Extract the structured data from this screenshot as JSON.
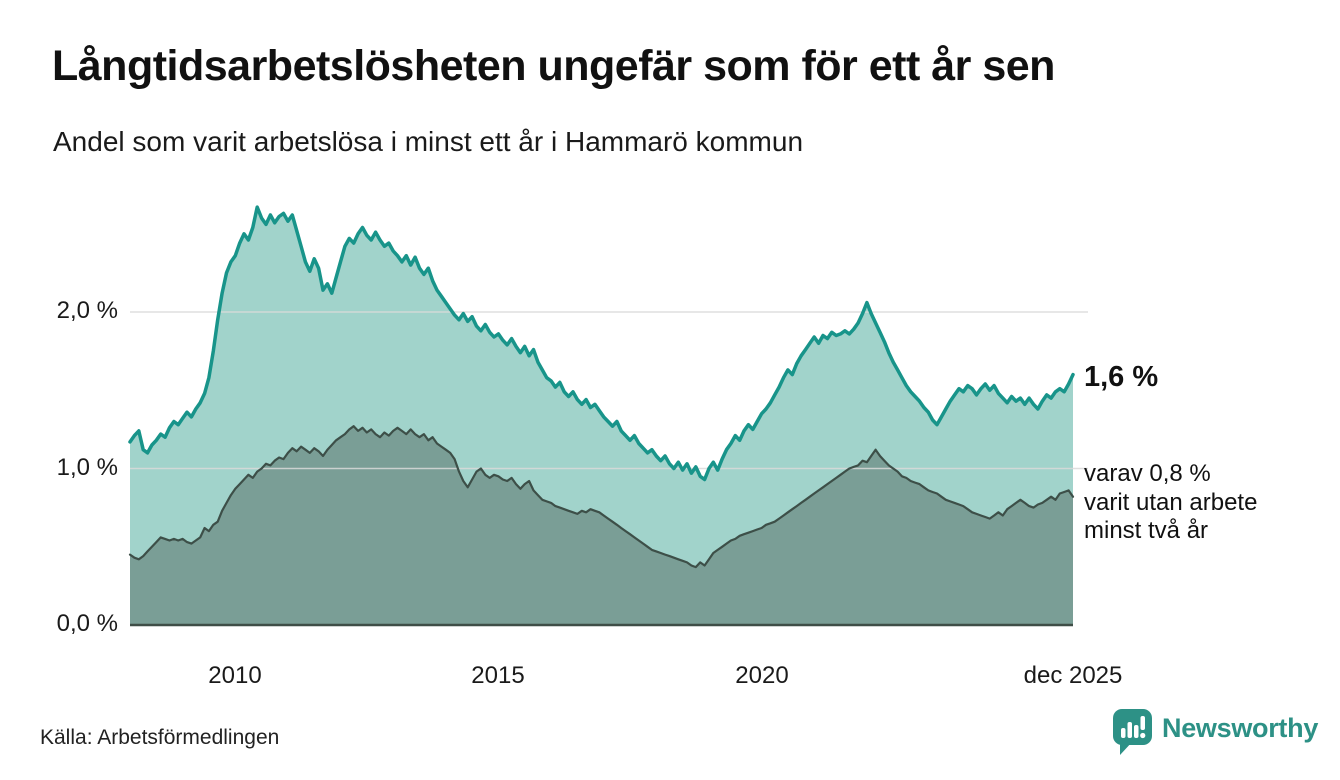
{
  "header": {
    "title": "Långtidsarbetslösheten ungefär som för ett år sen",
    "subtitle": "Andel som varit arbetslösa i minst ett år i Hammarö kommun"
  },
  "chart_data": {
    "type": "area",
    "title": "Långtidsarbetslösheten ungefär som för ett år sen",
    "subtitle": "Andel som varit arbetslösa i minst ett år i Hammarö kommun",
    "x_start": 2008.0,
    "x_end": 2025.9167,
    "x_unit": "monthly",
    "ylim": [
      0,
      2.8
    ],
    "grid": "horizontal",
    "yticks": [
      {
        "value": 0,
        "label": "0,0 %"
      },
      {
        "value": 1,
        "label": "1,0 %"
      },
      {
        "value": 2,
        "label": "2,0 %"
      }
    ],
    "xticks": [
      {
        "value": 2010,
        "label": "2010"
      },
      {
        "value": 2015,
        "label": "2015"
      },
      {
        "value": 2020,
        "label": "2020"
      },
      {
        "value": 2025.9167,
        "label": "dec 2025"
      }
    ],
    "series": [
      {
        "name": "Arbetslösa minst ett år",
        "line_color": "#18948a",
        "fill_color": "#a1d3cb",
        "last_value": 1.6,
        "values": [
          1.17,
          1.21,
          1.24,
          1.12,
          1.1,
          1.15,
          1.18,
          1.22,
          1.2,
          1.26,
          1.3,
          1.28,
          1.32,
          1.36,
          1.33,
          1.38,
          1.42,
          1.48,
          1.58,
          1.75,
          1.95,
          2.12,
          2.25,
          2.32,
          2.36,
          2.44,
          2.5,
          2.46,
          2.54,
          2.67,
          2.6,
          2.56,
          2.62,
          2.57,
          2.61,
          2.63,
          2.58,
          2.62,
          2.52,
          2.42,
          2.32,
          2.26,
          2.34,
          2.28,
          2.14,
          2.18,
          2.12,
          2.22,
          2.32,
          2.42,
          2.47,
          2.44,
          2.5,
          2.54,
          2.49,
          2.46,
          2.51,
          2.46,
          2.42,
          2.44,
          2.39,
          2.36,
          2.32,
          2.36,
          2.3,
          2.35,
          2.28,
          2.24,
          2.28,
          2.2,
          2.14,
          2.1,
          2.06,
          2.02,
          1.98,
          1.95,
          1.99,
          1.94,
          1.97,
          1.91,
          1.88,
          1.92,
          1.87,
          1.84,
          1.86,
          1.82,
          1.79,
          1.83,
          1.78,
          1.74,
          1.78,
          1.72,
          1.76,
          1.68,
          1.63,
          1.58,
          1.56,
          1.52,
          1.55,
          1.49,
          1.46,
          1.49,
          1.44,
          1.41,
          1.44,
          1.39,
          1.41,
          1.37,
          1.33,
          1.3,
          1.27,
          1.3,
          1.24,
          1.21,
          1.18,
          1.21,
          1.16,
          1.13,
          1.1,
          1.12,
          1.08,
          1.05,
          1.08,
          1.03,
          1.0,
          1.04,
          0.99,
          1.03,
          0.97,
          1.01,
          0.95,
          0.93,
          1.0,
          1.04,
          0.99,
          1.06,
          1.12,
          1.16,
          1.21,
          1.18,
          1.24,
          1.28,
          1.25,
          1.3,
          1.35,
          1.38,
          1.42,
          1.47,
          1.52,
          1.58,
          1.63,
          1.6,
          1.67,
          1.72,
          1.76,
          1.8,
          1.84,
          1.8,
          1.85,
          1.83,
          1.87,
          1.85,
          1.86,
          1.88,
          1.86,
          1.89,
          1.93,
          1.99,
          2.06,
          1.99,
          1.93,
          1.87,
          1.81,
          1.74,
          1.68,
          1.63,
          1.58,
          1.53,
          1.49,
          1.46,
          1.43,
          1.39,
          1.36,
          1.31,
          1.28,
          1.33,
          1.38,
          1.43,
          1.47,
          1.51,
          1.49,
          1.53,
          1.51,
          1.47,
          1.51,
          1.54,
          1.5,
          1.53,
          1.48,
          1.45,
          1.42,
          1.46,
          1.43,
          1.45,
          1.41,
          1.45,
          1.41,
          1.38,
          1.43,
          1.47,
          1.45,
          1.49,
          1.51,
          1.49,
          1.54,
          1.6
        ]
      },
      {
        "name": "Arbetslösa minst två år",
        "line_color": "#3d4f48",
        "fill_color": "#7a9e96",
        "last_value": 0.8,
        "values": [
          0.45,
          0.43,
          0.42,
          0.44,
          0.47,
          0.5,
          0.53,
          0.56,
          0.55,
          0.54,
          0.55,
          0.54,
          0.55,
          0.53,
          0.52,
          0.54,
          0.56,
          0.62,
          0.6,
          0.64,
          0.66,
          0.73,
          0.78,
          0.83,
          0.87,
          0.9,
          0.93,
          0.96,
          0.94,
          0.98,
          1.0,
          1.03,
          1.02,
          1.05,
          1.07,
          1.06,
          1.1,
          1.13,
          1.11,
          1.14,
          1.12,
          1.1,
          1.13,
          1.11,
          1.08,
          1.12,
          1.15,
          1.18,
          1.2,
          1.22,
          1.25,
          1.27,
          1.24,
          1.26,
          1.23,
          1.25,
          1.22,
          1.2,
          1.23,
          1.21,
          1.24,
          1.26,
          1.24,
          1.22,
          1.25,
          1.22,
          1.2,
          1.22,
          1.18,
          1.2,
          1.16,
          1.14,
          1.12,
          1.1,
          1.06,
          0.98,
          0.92,
          0.88,
          0.93,
          0.98,
          1.0,
          0.96,
          0.94,
          0.96,
          0.95,
          0.93,
          0.92,
          0.94,
          0.9,
          0.87,
          0.9,
          0.92,
          0.86,
          0.83,
          0.8,
          0.79,
          0.78,
          0.76,
          0.75,
          0.74,
          0.73,
          0.72,
          0.71,
          0.73,
          0.72,
          0.74,
          0.73,
          0.72,
          0.7,
          0.68,
          0.66,
          0.64,
          0.62,
          0.6,
          0.58,
          0.56,
          0.54,
          0.52,
          0.5,
          0.48,
          0.47,
          0.46,
          0.45,
          0.44,
          0.43,
          0.42,
          0.41,
          0.4,
          0.38,
          0.37,
          0.4,
          0.38,
          0.42,
          0.46,
          0.48,
          0.5,
          0.52,
          0.54,
          0.55,
          0.57,
          0.58,
          0.59,
          0.6,
          0.61,
          0.62,
          0.64,
          0.65,
          0.66,
          0.68,
          0.7,
          0.72,
          0.74,
          0.76,
          0.78,
          0.8,
          0.82,
          0.84,
          0.86,
          0.88,
          0.9,
          0.92,
          0.94,
          0.96,
          0.98,
          1.0,
          1.01,
          1.02,
          1.05,
          1.04,
          1.08,
          1.12,
          1.08,
          1.05,
          1.02,
          1.0,
          0.98,
          0.95,
          0.94,
          0.92,
          0.91,
          0.9,
          0.88,
          0.86,
          0.85,
          0.84,
          0.82,
          0.8,
          0.79,
          0.78,
          0.77,
          0.76,
          0.74,
          0.72,
          0.71,
          0.7,
          0.69,
          0.68,
          0.7,
          0.72,
          0.7,
          0.74,
          0.76,
          0.78,
          0.8,
          0.78,
          0.76,
          0.75,
          0.77,
          0.78,
          0.8,
          0.82,
          0.8,
          0.84,
          0.85,
          0.86,
          0.82
        ]
      }
    ],
    "annotations": {
      "end_value": {
        "text": "1,6 %"
      },
      "sub_label_lines": [
        "varav 0,8 %",
        "varit utan arbete",
        "minst två år"
      ]
    },
    "colors": {
      "grid": "#d9d9d9",
      "axis": "#3f4e47",
      "text": "#111111"
    }
  },
  "footer": {
    "source": "Källa: Arbetsförmedlingen",
    "brand_name": "Newsworthy",
    "brand_color": "#2d9186"
  }
}
